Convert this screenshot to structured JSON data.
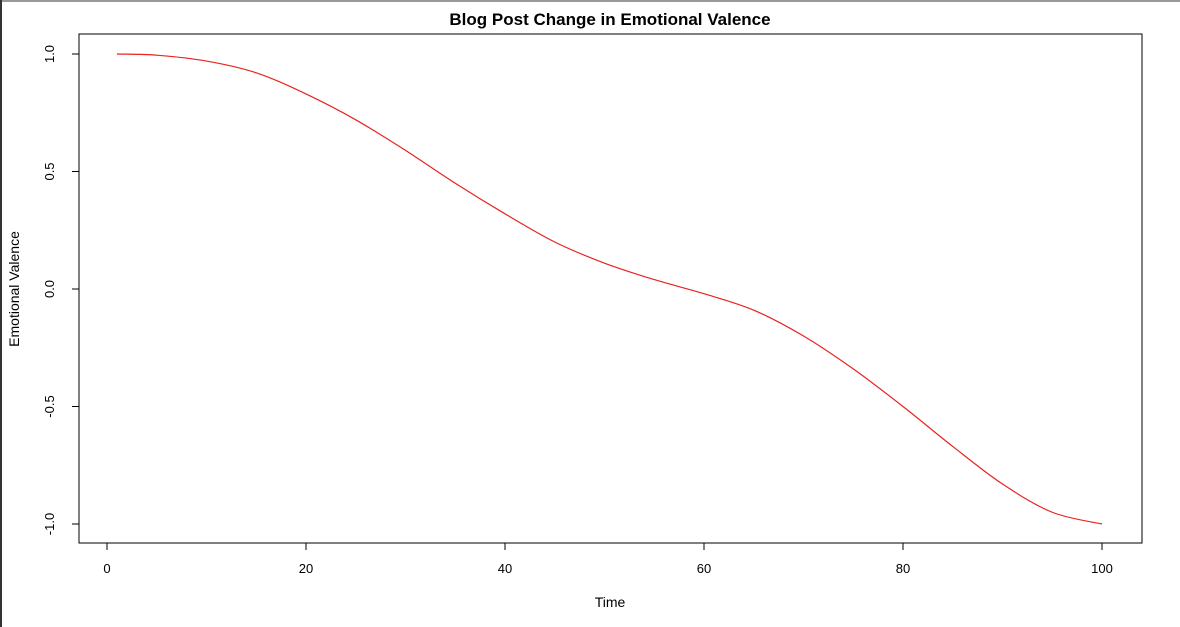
{
  "chart_data": {
    "type": "line",
    "title": "Blog Post Change in Emotional Valence",
    "xlabel": "Time",
    "ylabel": "Emotional Valence",
    "xlim": [
      1,
      100
    ],
    "ylim": [
      -1.0,
      1.0
    ],
    "x_ticks": [
      0,
      20,
      40,
      60,
      80,
      100
    ],
    "x_tick_labels": [
      "0",
      "20",
      "40",
      "60",
      "80",
      "100"
    ],
    "y_ticks": [
      -1.0,
      -0.5,
      0.0,
      0.5,
      1.0
    ],
    "y_tick_labels": [
      "-1.0",
      "-0.5",
      "0.0",
      "0.5",
      "1.0"
    ],
    "grid": false,
    "line_color": "#e8231f",
    "series": [
      {
        "x": [
          1,
          5,
          10,
          15,
          20,
          25,
          30,
          35,
          40,
          45,
          50,
          55,
          60,
          65,
          70,
          75,
          80,
          85,
          90,
          95,
          100
        ],
        "values": [
          1.0,
          0.995,
          0.97,
          0.92,
          0.83,
          0.72,
          0.59,
          0.45,
          0.32,
          0.2,
          0.11,
          0.04,
          -0.02,
          -0.09,
          -0.2,
          -0.34,
          -0.5,
          -0.67,
          -0.83,
          -0.95,
          -1.0
        ]
      }
    ]
  }
}
